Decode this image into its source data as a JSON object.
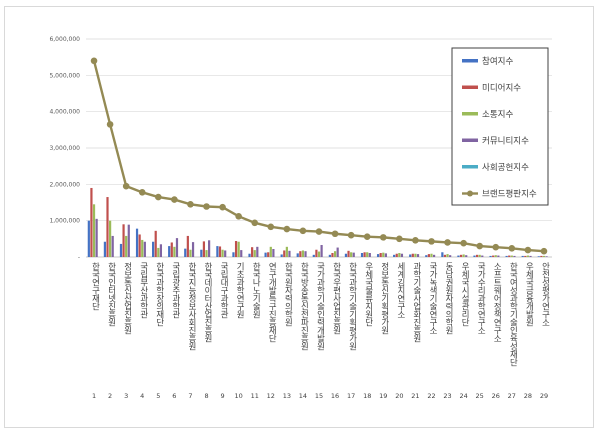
{
  "chart_data": {
    "type": "bar",
    "ylim": [
      0,
      6000000
    ],
    "yticks": [
      "-",
      "1,000,000",
      "2,000,000",
      "3,000,000",
      "4,000,000",
      "5,000,000",
      "6,000,000"
    ],
    "grid": true,
    "legend_position": "top-right",
    "categories": [
      {
        "num": "1",
        "label": "한국연구재단"
      },
      {
        "num": "2",
        "label": "한국인터넷진흥원"
      },
      {
        "num": "3",
        "label": "정보통신산업진흥원"
      },
      {
        "num": "4",
        "label": "국립부산과학관"
      },
      {
        "num": "5",
        "label": "한국과학창의재단"
      },
      {
        "num": "6",
        "label": "국립광주과학관"
      },
      {
        "num": "7",
        "label": "한국지능정보사회진흥원"
      },
      {
        "num": "8",
        "label": "한국데이터산업진흥원"
      },
      {
        "num": "9",
        "label": "국립대구과학관"
      },
      {
        "num": "10",
        "label": "기초과학연구원"
      },
      {
        "num": "11",
        "label": "한국나노기술원"
      },
      {
        "num": "12",
        "label": "연구개발특구진흥재단"
      },
      {
        "num": "13",
        "label": "한국원자력의학원"
      },
      {
        "num": "14",
        "label": "한국방송통신전파진흥원"
      },
      {
        "num": "15",
        "label": "국가과학기술인력개발원"
      },
      {
        "num": "16",
        "label": "한국우편사업진흥원"
      },
      {
        "num": "17",
        "label": "한국과학기술기획평가원"
      },
      {
        "num": "18",
        "label": "우체국물류지원단"
      },
      {
        "num": "19",
        "label": "정보통신기획평가원"
      },
      {
        "num": "20",
        "label": "세계김치연구소"
      },
      {
        "num": "21",
        "label": "과학기술사업화진흥원"
      },
      {
        "num": "22",
        "label": "국가녹색기술연구소"
      },
      {
        "num": "23",
        "label": "동남권원자력의학원"
      },
      {
        "num": "24",
        "label": "우체국시설관리단"
      },
      {
        "num": "25",
        "label": "국가수리과학연구소"
      },
      {
        "num": "26",
        "label": "소프트웨어정책연구소"
      },
      {
        "num": "27",
        "label": "한국여성과학기술인육성재단"
      },
      {
        "num": "28",
        "label": "우체국금융개발원"
      },
      {
        "num": "29",
        "label": "안전성평가연구소"
      }
    ],
    "series": [
      {
        "name": "참여지수",
        "type": "bar",
        "color": "#4472c4",
        "values": [
          1000000,
          420000,
          360000,
          780000,
          420000,
          300000,
          230000,
          200000,
          300000,
          130000,
          90000,
          120000,
          70000,
          100000,
          60000,
          60000,
          90000,
          110000,
          80000,
          60000,
          70000,
          50000,
          130000,
          40000,
          40000,
          30000,
          30000,
          30000,
          20000
        ]
      },
      {
        "name": "미디어지수",
        "type": "bar",
        "color": "#c0504d",
        "values": [
          1900000,
          1650000,
          900000,
          620000,
          720000,
          400000,
          580000,
          430000,
          290000,
          440000,
          270000,
          130000,
          180000,
          160000,
          200000,
          110000,
          170000,
          130000,
          110000,
          90000,
          90000,
          80000,
          60000,
          60000,
          60000,
          40000,
          40000,
          30000,
          30000
        ]
      },
      {
        "name": "소통지수",
        "type": "bar",
        "color": "#9bbb59",
        "values": [
          1450000,
          1000000,
          580000,
          470000,
          250000,
          280000,
          200000,
          190000,
          200000,
          420000,
          190000,
          280000,
          280000,
          180000,
          150000,
          160000,
          130000,
          130000,
          120000,
          110000,
          90000,
          90000,
          80000,
          70000,
          60000,
          50000,
          40000,
          40000,
          30000
        ]
      },
      {
        "name": "커뮤니티지수",
        "type": "bar",
        "color": "#8064a2",
        "values": [
          1050000,
          580000,
          890000,
          420000,
          350000,
          520000,
          410000,
          460000,
          180000,
          190000,
          280000,
          220000,
          170000,
          160000,
          330000,
          260000,
          120000,
          110000,
          100000,
          90000,
          80000,
          60000,
          50000,
          50000,
          40000,
          40000,
          30000,
          30000,
          20000
        ]
      },
      {
        "name": "사회공헌지수",
        "type": "bar",
        "color": "#4bacc6",
        "values": [
          0,
          0,
          0,
          0,
          0,
          0,
          0,
          0,
          0,
          0,
          0,
          0,
          0,
          0,
          0,
          0,
          0,
          0,
          0,
          0,
          0,
          0,
          0,
          0,
          0,
          0,
          0,
          0,
          0
        ]
      },
      {
        "name": "브랜드평판지수",
        "type": "line",
        "color": "#948a54",
        "values": [
          5400000,
          3650000,
          1950000,
          1780000,
          1650000,
          1580000,
          1450000,
          1390000,
          1370000,
          1120000,
          940000,
          830000,
          770000,
          720000,
          700000,
          640000,
          600000,
          560000,
          540000,
          500000,
          460000,
          430000,
          400000,
          380000,
          300000,
          270000,
          240000,
          190000,
          160000
        ]
      }
    ]
  }
}
